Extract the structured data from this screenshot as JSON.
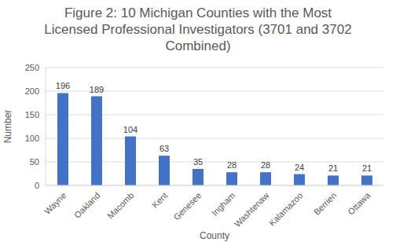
{
  "chart_data": {
    "type": "bar",
    "title": "Figure 2: 10 Michigan Counties with the Most Licensed Professional Investigators (3701 and 3702 Combined)",
    "xlabel": "County",
    "ylabel": "Number",
    "categories": [
      "Wayne",
      "Oakland",
      "Macomb",
      "Kent",
      "Genesee",
      "Ingham",
      "Washtenaw",
      "Kalamazoo",
      "Berrien",
      "Ottawa"
    ],
    "values": [
      196,
      189,
      104,
      63,
      35,
      28,
      28,
      24,
      21,
      21
    ],
    "color": "#4472c4",
    "ylim": [
      0,
      250
    ],
    "yticks": [
      0,
      50,
      100,
      150,
      200,
      250
    ],
    "grid": true,
    "data_labels": true
  }
}
